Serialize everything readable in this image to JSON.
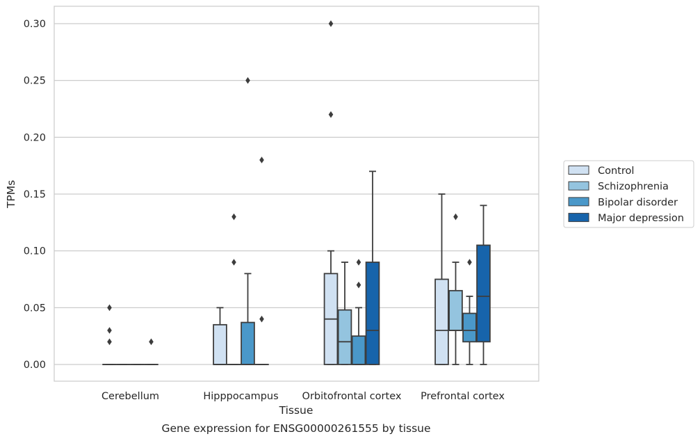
{
  "chart_data": {
    "type": "boxplot",
    "title": "Gene expression for ENSG00000261555 by tissue",
    "xlabel": "Tissue",
    "ylabel": "TPMs",
    "ylim": [
      -0.015,
      0.315
    ],
    "yticks": [
      "0.00",
      "0.05",
      "0.10",
      "0.15",
      "0.20",
      "0.25",
      "0.30"
    ],
    "ytick_values": [
      0,
      0.05,
      0.1,
      0.15,
      0.2,
      0.25,
      0.3
    ],
    "grid": "horizontal",
    "legend_position": "right",
    "categories": [
      "Cerebellum",
      "Hipppocampus",
      "Orbitofrontal cortex",
      "Prefrontal cortex"
    ],
    "series": [
      {
        "name": "Control",
        "color": "#d0e1f2",
        "boxes": [
          {
            "min": 0,
            "q1": 0,
            "median": 0,
            "q3": 0,
            "max": 0,
            "outliers": [
              0.05,
              0.03,
              0.02
            ]
          },
          {
            "min": 0,
            "q1": 0,
            "median": 0,
            "q3": 0.035,
            "max": 0.05,
            "outliers": []
          },
          {
            "min": 0,
            "q1": 0,
            "median": 0.04,
            "q3": 0.08,
            "max": 0.1,
            "outliers": [
              0.3,
              0.22
            ]
          },
          {
            "min": 0,
            "q1": 0,
            "median": 0.03,
            "q3": 0.075,
            "max": 0.15,
            "outliers": []
          }
        ]
      },
      {
        "name": "Schizophrenia",
        "color": "#94c4df",
        "boxes": [
          {
            "min": 0,
            "q1": 0,
            "median": 0,
            "q3": 0,
            "max": 0,
            "outliers": []
          },
          {
            "min": 0,
            "q1": 0,
            "median": 0,
            "q3": 0,
            "max": 0,
            "outliers": [
              0.13,
              0.09
            ]
          },
          {
            "min": 0,
            "q1": 0,
            "median": 0.02,
            "q3": 0.048,
            "max": 0.09,
            "outliers": []
          },
          {
            "min": 0,
            "q1": 0.03,
            "median": 0.03,
            "q3": 0.065,
            "max": 0.09,
            "outliers": [
              0.13
            ]
          }
        ]
      },
      {
        "name": "Bipolar disorder",
        "color": "#4a98c9",
        "boxes": [
          {
            "min": 0,
            "q1": 0,
            "median": 0,
            "q3": 0,
            "max": 0,
            "outliers": []
          },
          {
            "min": 0,
            "q1": 0,
            "median": 0,
            "q3": 0.037,
            "max": 0.08,
            "outliers": [
              0.25
            ]
          },
          {
            "min": 0,
            "q1": 0,
            "median": 0,
            "q3": 0.025,
            "max": 0.05,
            "outliers": [
              0.09,
              0.07
            ]
          },
          {
            "min": 0,
            "q1": 0.02,
            "median": 0.03,
            "q3": 0.045,
            "max": 0.06,
            "outliers": [
              0.09
            ]
          }
        ]
      },
      {
        "name": "Major depression",
        "color": "#1764ab",
        "boxes": [
          {
            "min": 0,
            "q1": 0,
            "median": 0,
            "q3": 0,
            "max": 0,
            "outliers": [
              0.02
            ]
          },
          {
            "min": 0,
            "q1": 0,
            "median": 0,
            "q3": 0,
            "max": 0,
            "outliers": [
              0.18,
              0.04
            ]
          },
          {
            "min": 0,
            "q1": 0,
            "median": 0.03,
            "q3": 0.09,
            "max": 0.17,
            "outliers": []
          },
          {
            "min": 0,
            "q1": 0.02,
            "median": 0.06,
            "q3": 0.105,
            "max": 0.14,
            "outliers": []
          }
        ]
      }
    ]
  }
}
